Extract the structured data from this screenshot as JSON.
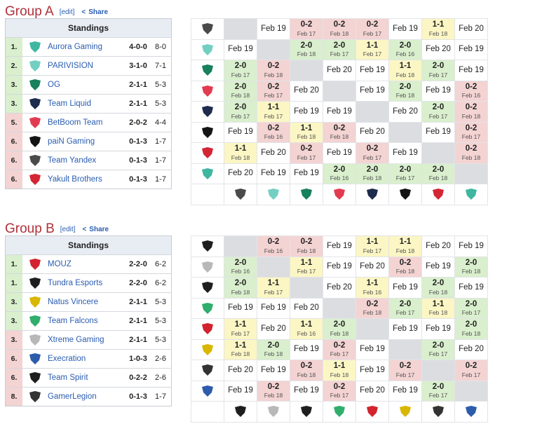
{
  "groups": [
    {
      "title": "Group A",
      "edit": "[edit]",
      "share": "Share",
      "standings": {
        "header": "Standings",
        "rows": [
          {
            "rank": "1.",
            "team": "Aurora Gaming",
            "record": "4-0-0",
            "maps": "8-0"
          },
          {
            "rank": "2.",
            "team": "PARIVISION",
            "record": "3-1-0",
            "maps": "7-1"
          },
          {
            "rank": "3.",
            "team": "OG",
            "record": "2-1-1",
            "maps": "5-3"
          },
          {
            "rank": "3.",
            "team": "Team Liquid",
            "record": "2-1-1",
            "maps": "5-3"
          },
          {
            "rank": "5.",
            "team": "BetBoom Team",
            "record": "2-0-2",
            "maps": "4-4"
          },
          {
            "rank": "6.",
            "team": "paiN Gaming",
            "record": "0-1-3",
            "maps": "1-7"
          },
          {
            "rank": "6.",
            "team": "Team Yandex",
            "record": "0-1-3",
            "maps": "1-7"
          },
          {
            "rank": "6.",
            "team": "Yakult Brothers",
            "record": "0-1-3",
            "maps": "1-7"
          }
        ]
      },
      "crosstable": [
        [
          null,
          {
            "date": "Feb 19"
          },
          {
            "score": "0-2",
            "date": "Feb 17"
          },
          {
            "score": "0-2",
            "date": "Feb 18"
          },
          {
            "score": "0-2",
            "date": "Feb 17"
          },
          {
            "date": "Feb 19"
          },
          {
            "score": "1-1",
            "date": "Feb 18"
          },
          {
            "date": "Feb 20"
          }
        ],
        [
          {
            "date": "Feb 19"
          },
          null,
          {
            "score": "2-0",
            "date": "Feb 18"
          },
          {
            "score": "2-0",
            "date": "Feb 17"
          },
          {
            "score": "1-1",
            "date": "Feb 17"
          },
          {
            "score": "2-0",
            "date": "Feb 16"
          },
          {
            "date": "Feb 20"
          },
          {
            "date": "Feb 19"
          }
        ],
        [
          {
            "score": "2-0",
            "date": "Feb 17"
          },
          {
            "score": "0-2",
            "date": "Feb 18"
          },
          null,
          {
            "date": "Feb 20"
          },
          {
            "date": "Feb 19"
          },
          {
            "score": "1-1",
            "date": "Feb 18"
          },
          {
            "score": "2-0",
            "date": "Feb 17"
          },
          {
            "date": "Feb 19"
          }
        ],
        [
          {
            "score": "2-0",
            "date": "Feb 18"
          },
          {
            "score": "0-2",
            "date": "Feb 17"
          },
          {
            "date": "Feb 20"
          },
          null,
          {
            "date": "Feb 19"
          },
          {
            "score": "2-0",
            "date": "Feb 18"
          },
          {
            "date": "Feb 19"
          },
          {
            "score": "0-2",
            "date": "Feb 16"
          }
        ],
        [
          {
            "score": "2-0",
            "date": "Feb 17"
          },
          {
            "score": "1-1",
            "date": "Feb 17"
          },
          {
            "date": "Feb 19"
          },
          {
            "date": "Feb 19"
          },
          null,
          {
            "date": "Feb 20"
          },
          {
            "score": "2-0",
            "date": "Feb 17"
          },
          {
            "score": "0-2",
            "date": "Feb 18"
          }
        ],
        [
          {
            "date": "Feb 19"
          },
          {
            "score": "0-2",
            "date": "Feb 16"
          },
          {
            "score": "1-1",
            "date": "Feb 18"
          },
          {
            "score": "0-2",
            "date": "Feb 18"
          },
          {
            "date": "Feb 20"
          },
          null,
          {
            "date": "Feb 19"
          },
          {
            "score": "0-2",
            "date": "Feb 17"
          }
        ],
        [
          {
            "score": "1-1",
            "date": "Feb 18"
          },
          {
            "date": "Feb 20"
          },
          {
            "score": "0-2",
            "date": "Feb 17"
          },
          {
            "date": "Feb 19"
          },
          {
            "score": "0-2",
            "date": "Feb 17"
          },
          {
            "date": "Feb 19"
          },
          null,
          {
            "score": "0-2",
            "date": "Feb 18"
          }
        ],
        [
          {
            "date": "Feb 20"
          },
          {
            "date": "Feb 19"
          },
          {
            "date": "Feb 19"
          },
          {
            "score": "2-0",
            "date": "Feb 16"
          },
          {
            "score": "2-0",
            "date": "Feb 18"
          },
          {
            "score": "2-0",
            "date": "Feb 17"
          },
          {
            "score": "2-0",
            "date": "Feb 18"
          },
          null
        ]
      ]
    },
    {
      "title": "Group B",
      "edit": "[edit]",
      "share": "Share",
      "standings": {
        "header": "Standings",
        "rows": [
          {
            "rank": "1.",
            "team": "MOUZ",
            "record": "2-2-0",
            "maps": "6-2"
          },
          {
            "rank": "1.",
            "team": "Tundra Esports",
            "record": "2-2-0",
            "maps": "6-2"
          },
          {
            "rank": "3.",
            "team": "Natus Vincere",
            "record": "2-1-1",
            "maps": "5-3"
          },
          {
            "rank": "3.",
            "team": "Team Falcons",
            "record": "2-1-1",
            "maps": "5-3"
          },
          {
            "rank": "3.",
            "team": "Xtreme Gaming",
            "record": "2-1-1",
            "maps": "5-3"
          },
          {
            "rank": "6.",
            "team": "Execration",
            "record": "1-0-3",
            "maps": "2-6"
          },
          {
            "rank": "6.",
            "team": "Team Spirit",
            "record": "0-2-2",
            "maps": "2-6"
          },
          {
            "rank": "8.",
            "team": "GamerLegion",
            "record": "0-1-3",
            "maps": "1-7"
          }
        ]
      },
      "crosstable": [
        [
          null,
          {
            "score": "0-2",
            "date": "Feb 16"
          },
          {
            "score": "0-2",
            "date": "Feb 18"
          },
          {
            "date": "Feb 19"
          },
          {
            "score": "1-1",
            "date": "Feb 17"
          },
          {
            "score": "1-1",
            "date": "Feb 18"
          },
          {
            "date": "Feb 20"
          },
          {
            "date": "Feb 19"
          }
        ],
        [
          {
            "score": "2-0",
            "date": "Feb 16"
          },
          null,
          {
            "score": "1-1",
            "date": "Feb 17"
          },
          {
            "date": "Feb 19"
          },
          {
            "date": "Feb 20"
          },
          {
            "score": "0-2",
            "date": "Feb 18"
          },
          {
            "date": "Feb 19"
          },
          {
            "score": "2-0",
            "date": "Feb 18"
          }
        ],
        [
          {
            "score": "2-0",
            "date": "Feb 18"
          },
          {
            "score": "1-1",
            "date": "Feb 17"
          },
          null,
          {
            "date": "Feb 20"
          },
          {
            "score": "1-1",
            "date": "Feb 16"
          },
          {
            "date": "Feb 19"
          },
          {
            "score": "2-0",
            "date": "Feb 18"
          },
          {
            "date": "Feb 19"
          }
        ],
        [
          {
            "date": "Feb 19"
          },
          {
            "date": "Feb 19"
          },
          {
            "date": "Feb 20"
          },
          null,
          {
            "score": "0-2",
            "date": "Feb 18"
          },
          {
            "score": "2-0",
            "date": "Feb 17"
          },
          {
            "score": "1-1",
            "date": "Feb 18"
          },
          {
            "score": "2-0",
            "date": "Feb 17"
          }
        ],
        [
          {
            "score": "1-1",
            "date": "Feb 17"
          },
          {
            "date": "Feb 20"
          },
          {
            "score": "1-1",
            "date": "Feb 16"
          },
          {
            "score": "2-0",
            "date": "Feb 18"
          },
          null,
          {
            "date": "Feb 19"
          },
          {
            "date": "Feb 19"
          },
          {
            "score": "2-0",
            "date": "Feb 18"
          }
        ],
        [
          {
            "score": "1-1",
            "date": "Feb 18"
          },
          {
            "score": "2-0",
            "date": "Feb 18"
          },
          {
            "date": "Feb 19"
          },
          {
            "score": "0-2",
            "date": "Feb 17"
          },
          {
            "date": "Feb 19"
          },
          null,
          {
            "score": "2-0",
            "date": "Feb 17"
          },
          {
            "date": "Feb 20"
          }
        ],
        [
          {
            "date": "Feb 20"
          },
          {
            "date": "Feb 19"
          },
          {
            "score": "0-2",
            "date": "Feb 18"
          },
          {
            "score": "1-1",
            "date": "Feb 18"
          },
          {
            "date": "Feb 19"
          },
          {
            "score": "0-2",
            "date": "Feb 17"
          },
          null,
          {
            "score": "0-2",
            "date": "Feb 17"
          }
        ],
        [
          {
            "date": "Feb 19"
          },
          {
            "score": "0-2",
            "date": "Feb 18"
          },
          {
            "date": "Feb 19"
          },
          {
            "score": "0-2",
            "date": "Feb 17"
          },
          {
            "date": "Feb 20"
          },
          {
            "date": "Feb 19"
          },
          {
            "score": "2-0",
            "date": "Feb 17"
          },
          null
        ]
      ]
    }
  ]
}
